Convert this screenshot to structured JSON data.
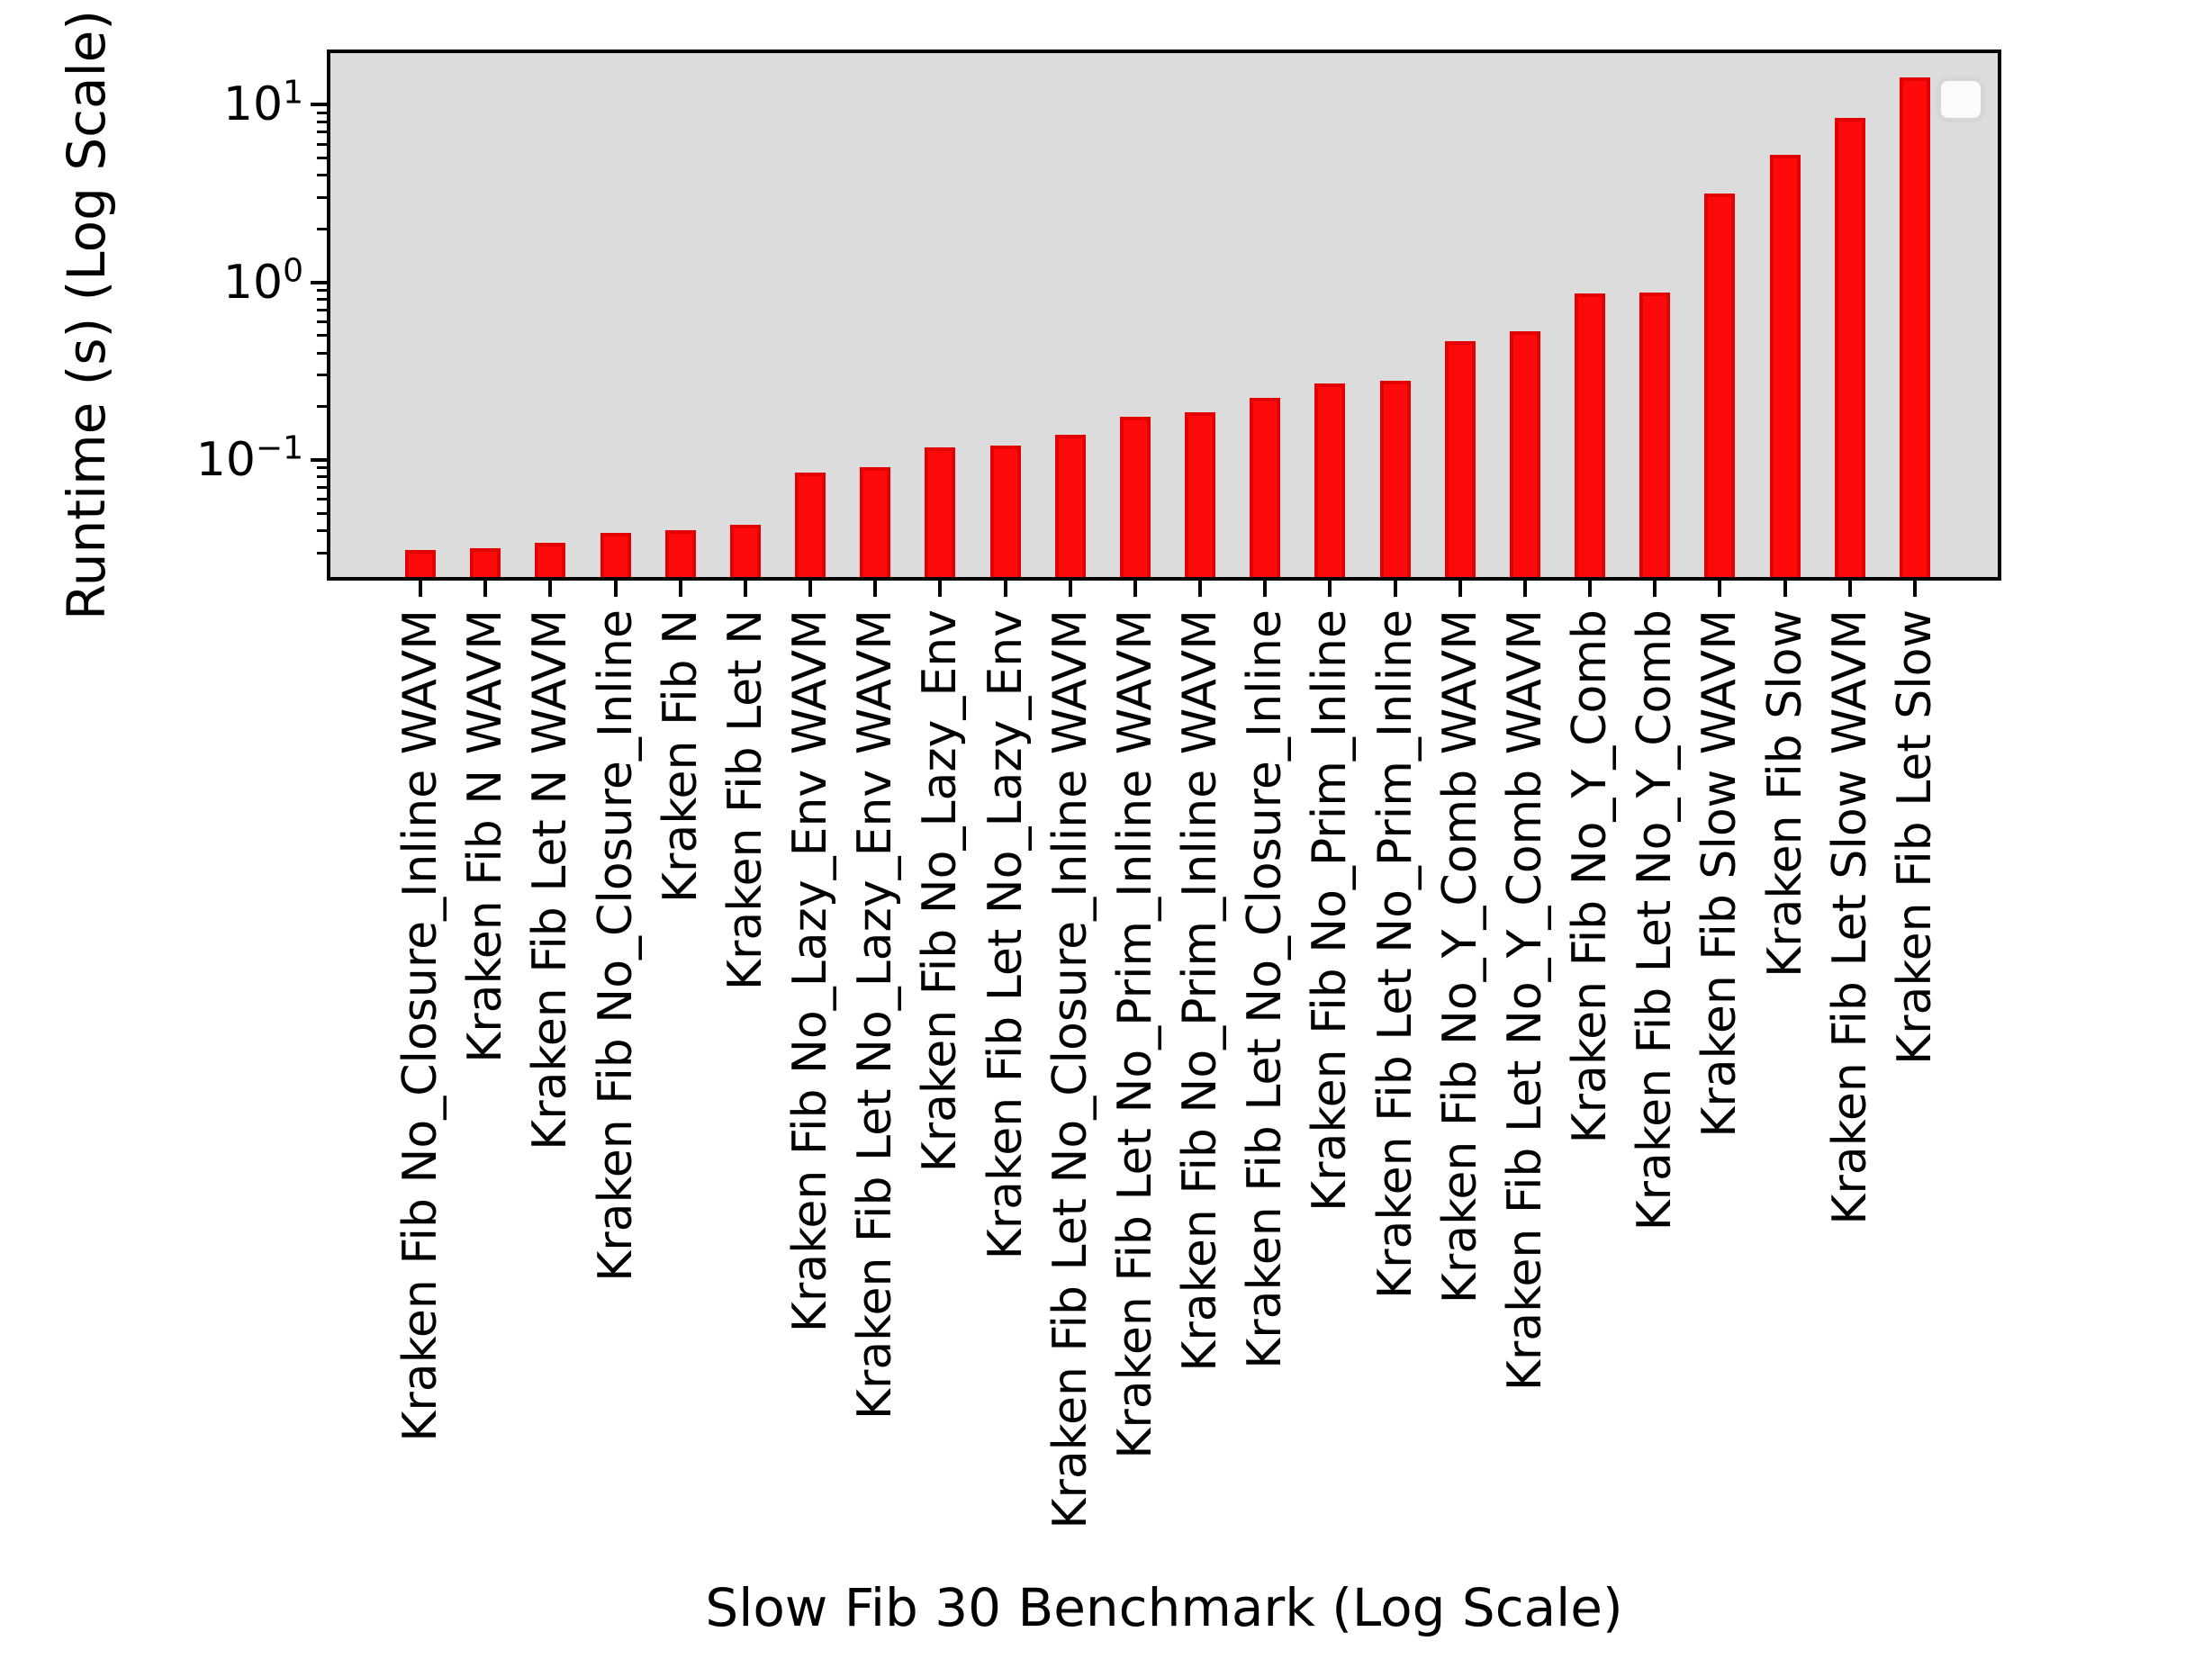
{
  "figure": {
    "ylabel": "Runtime (s) (Log Scale)",
    "xlabel": "Slow Fib 30 Benchmark (Log Scale)",
    "background_color": "#ffffff",
    "plot_background_color": "#dcdcdc",
    "bar_fill_color": "#ff0a0a",
    "bar_edge_color": "#e30000",
    "spine_color": "#000000"
  },
  "y_ticks": [
    {
      "value": 10,
      "base": "10",
      "exp": "1"
    },
    {
      "value": 1,
      "base": "10",
      "exp": "0"
    },
    {
      "value": 0.1,
      "base": "10",
      "exp": "−1"
    }
  ],
  "chart_data": {
    "type": "bar",
    "title": "",
    "xlabel": "Slow Fib 30 Benchmark (Log Scale)",
    "ylabel": "Runtime (s) (Log Scale)",
    "y_scale": "log",
    "ylim": [
      0.0219,
      19.5
    ],
    "grid": false,
    "legend": {
      "visible": true,
      "position": "upper right",
      "entries": []
    },
    "categories": [
      "Kraken Fib No_Closure_Inline WAVM",
      "Kraken Fib N WAVM",
      "Kraken Fib Let N WAVM",
      "Kraken Fib No_Closure_Inline",
      "Kraken Fib N",
      "Kraken Fib Let N",
      "Kraken Fib No_Lazy_Env WAVM",
      "Kraken Fib Let No_Lazy_Env WAVM",
      "Kraken Fib No_Lazy_Env",
      "Kraken Fib Let No_Lazy_Env",
      "Kraken Fib Let No_Closure_Inline WAVM",
      "Kraken Fib Let No_Prim_Inline WAVM",
      "Kraken Fib No_Prim_Inline WAVM",
      "Kraken Fib Let No_Closure_Inline",
      "Kraken Fib No_Prim_Inline",
      "Kraken Fib Let No_Prim_Inline",
      "Kraken Fib No_Y_Comb WAVM",
      "Kraken Fib Let No_Y_Comb WAVM",
      "Kraken Fib No_Y_Comb",
      "Kraken Fib Let No_Y_Comb",
      "Kraken Fib Slow WAVM",
      "Kraken Fib Slow",
      "Kraken Fib Let Slow WAVM",
      "Kraken Fib Let Slow"
    ],
    "values": [
      0.031,
      0.032,
      0.034,
      0.039,
      0.04,
      0.043,
      0.085,
      0.091,
      0.118,
      0.121,
      0.138,
      0.175,
      0.186,
      0.223,
      0.268,
      0.278,
      0.465,
      0.53,
      0.86,
      0.88,
      3.15,
      5.2,
      8.4,
      14.2
    ]
  }
}
